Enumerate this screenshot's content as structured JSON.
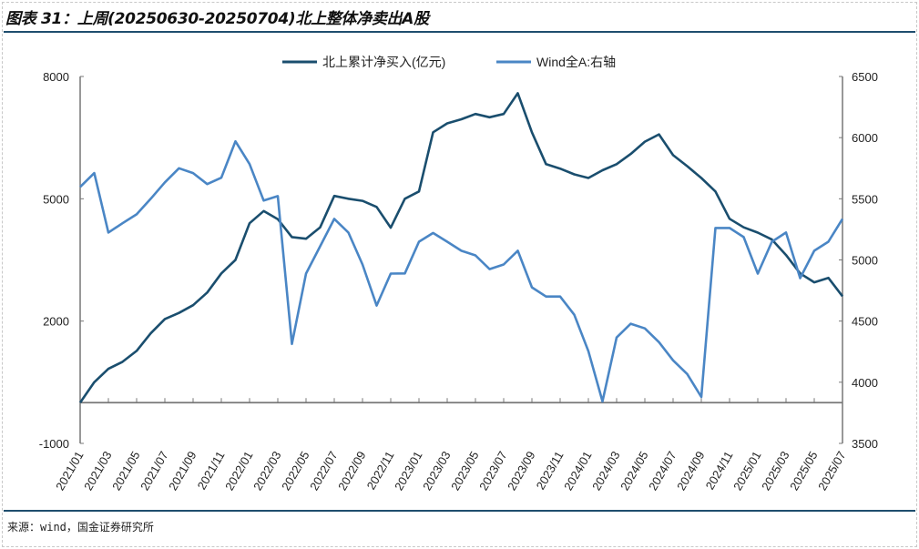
{
  "title": "图表 31：上周(20250630-20250704)北上整体净卖出A股",
  "source": "来源：wind，国金证券研究所",
  "chart_data": {
    "type": "line",
    "title": "图表 31：上周(20250630-20250704)北上整体净卖出A股",
    "legend_position": "top",
    "grid": false,
    "x_tick_labels": [
      "2021/01",
      "2021/03",
      "2021/05",
      "2021/07",
      "2021/09",
      "2021/11",
      "2022/01",
      "2022/03",
      "2022/05",
      "2022/07",
      "2022/09",
      "2022/11",
      "2023/01",
      "2023/03",
      "2023/05",
      "2023/07",
      "2023/09",
      "2023/11",
      "2024/01",
      "2024/03",
      "2024/05",
      "2024/07",
      "2024/09",
      "2024/11",
      "2025/01",
      "2025/03",
      "2025/05",
      "2025/07"
    ],
    "xlim": [
      "2021/01",
      "2025/07"
    ],
    "y_left": {
      "ylim": [
        -1000,
        8000
      ],
      "ticks": [
        -1000,
        2000,
        5000,
        8000
      ]
    },
    "y_right": {
      "ylim": [
        3500,
        6500
      ],
      "ticks": [
        3500,
        4000,
        4500,
        5000,
        5500,
        6000,
        6500
      ]
    },
    "series": [
      {
        "name": "北上累计净买入(亿元)",
        "axis": "left",
        "color": "#1a4e6e",
        "points": [
          [
            "2021/01",
            0
          ],
          [
            "2021/02",
            500
          ],
          [
            "2021/03",
            830
          ],
          [
            "2021/04",
            1000
          ],
          [
            "2021/05",
            1270
          ],
          [
            "2021/06",
            1700
          ],
          [
            "2021/07",
            2050
          ],
          [
            "2021/08",
            2200
          ],
          [
            "2021/09",
            2390
          ],
          [
            "2021/10",
            2700
          ],
          [
            "2021/11",
            3170
          ],
          [
            "2021/12",
            3500
          ],
          [
            "2022/01",
            4400
          ],
          [
            "2022/02",
            4700
          ],
          [
            "2022/03",
            4500
          ],
          [
            "2022/04",
            4060
          ],
          [
            "2022/05",
            4020
          ],
          [
            "2022/06",
            4300
          ],
          [
            "2022/07",
            5070
          ],
          [
            "2022/08",
            5000
          ],
          [
            "2022/09",
            4950
          ],
          [
            "2022/10",
            4800
          ],
          [
            "2022/11",
            4290
          ],
          [
            "2022/12",
            5000
          ],
          [
            "2023/01",
            5180
          ],
          [
            "2023/02",
            6630
          ],
          [
            "2023/03",
            6850
          ],
          [
            "2023/04",
            6950
          ],
          [
            "2023/05",
            7080
          ],
          [
            "2023/06",
            7000
          ],
          [
            "2023/07",
            7080
          ],
          [
            "2023/08",
            7590
          ],
          [
            "2023/09",
            6630
          ],
          [
            "2023/10",
            5850
          ],
          [
            "2023/11",
            5740
          ],
          [
            "2023/12",
            5600
          ],
          [
            "2024/01",
            5510
          ],
          [
            "2024/02",
            5700
          ],
          [
            "2024/03",
            5850
          ],
          [
            "2024/04",
            6100
          ],
          [
            "2024/05",
            6400
          ],
          [
            "2024/06",
            6580
          ],
          [
            "2024/07",
            6070
          ],
          [
            "2024/08",
            5800
          ],
          [
            "2024/09",
            5510
          ],
          [
            "2024/10",
            5180
          ],
          [
            "2024/11",
            4510
          ],
          [
            "2024/12",
            4300
          ],
          [
            "2025/01",
            4170
          ],
          [
            "2025/02",
            4000
          ],
          [
            "2025/03",
            3620
          ],
          [
            "2025/04",
            3170
          ],
          [
            "2025/05",
            2950
          ],
          [
            "2025/06",
            3060
          ],
          [
            "2025/07",
            2610
          ]
        ]
      },
      {
        "name": "Wind全A:右轴",
        "axis": "right",
        "color": "#4a86c5",
        "points": [
          [
            "2021/01",
            5597
          ],
          [
            "2021/02",
            5710
          ],
          [
            "2021/03",
            5224
          ],
          [
            "2021/04",
            5300
          ],
          [
            "2021/05",
            5373
          ],
          [
            "2021/06",
            5500
          ],
          [
            "2021/07",
            5634
          ],
          [
            "2021/08",
            5750
          ],
          [
            "2021/09",
            5710
          ],
          [
            "2021/10",
            5620
          ],
          [
            "2021/11",
            5672
          ],
          [
            "2021/12",
            5970
          ],
          [
            "2022/01",
            5784
          ],
          [
            "2022/02",
            5485
          ],
          [
            "2022/03",
            5522
          ],
          [
            "2022/04",
            4313
          ],
          [
            "2022/05",
            4888
          ],
          [
            "2022/06",
            5112
          ],
          [
            "2022/07",
            5336
          ],
          [
            "2022/08",
            5224
          ],
          [
            "2022/09",
            4963
          ],
          [
            "2022/10",
            4627
          ],
          [
            "2022/11",
            4888
          ],
          [
            "2022/12",
            4890
          ],
          [
            "2023/01",
            5149
          ],
          [
            "2023/02",
            5220
          ],
          [
            "2023/03",
            5149
          ],
          [
            "2023/04",
            5075
          ],
          [
            "2023/05",
            5037
          ],
          [
            "2023/06",
            4925
          ],
          [
            "2023/07",
            4963
          ],
          [
            "2023/08",
            5075
          ],
          [
            "2023/09",
            4776
          ],
          [
            "2023/10",
            4701
          ],
          [
            "2023/11",
            4701
          ],
          [
            "2023/12",
            4552
          ],
          [
            "2024/01",
            4254
          ],
          [
            "2024/02",
            3843
          ],
          [
            "2024/03",
            4366
          ],
          [
            "2024/04",
            4478
          ],
          [
            "2024/05",
            4440
          ],
          [
            "2024/06",
            4328
          ],
          [
            "2024/07",
            4179
          ],
          [
            "2024/08",
            4067
          ],
          [
            "2024/09",
            3880
          ],
          [
            "2024/10",
            5261
          ],
          [
            "2024/11",
            5261
          ],
          [
            "2024/12",
            5187
          ],
          [
            "2025/01",
            4888
          ],
          [
            "2025/02",
            5149
          ],
          [
            "2025/03",
            5224
          ],
          [
            "2025/04",
            4851
          ],
          [
            "2025/05",
            5075
          ],
          [
            "2025/06",
            5149
          ],
          [
            "2025/07",
            5336
          ]
        ]
      }
    ]
  }
}
